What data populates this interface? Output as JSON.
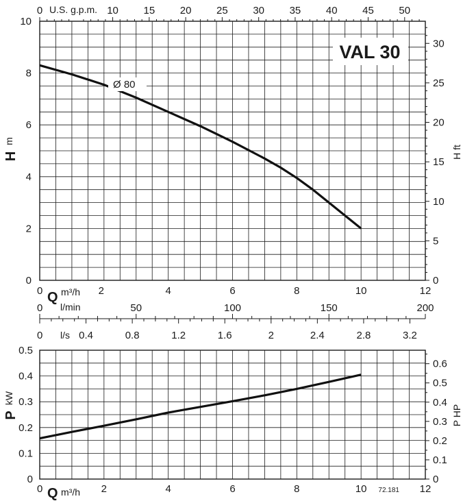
{
  "chart_data": [
    {
      "type": "line",
      "title": "VAL 30",
      "xlabel": "Q",
      "xunit": "m³/h",
      "ylabel": "H",
      "yunit": "m",
      "y2label": "H ft",
      "xlim": [
        0,
        12
      ],
      "ylim": [
        0,
        10
      ],
      "y2lim": [
        0,
        32.8
      ],
      "grid": true,
      "x_ticks": [
        0,
        2,
        4,
        6,
        8,
        10,
        12
      ],
      "y_ticks": [
        0,
        2,
        4,
        6,
        8,
        10
      ],
      "y2_ticks": [
        0,
        5,
        10,
        15,
        20,
        25,
        30
      ],
      "top_axis": {
        "label": "U.S. g.p.m.",
        "ticks": [
          0,
          10,
          15,
          20,
          25,
          30,
          35,
          40,
          45,
          50
        ],
        "per_m3h": 4.403
      },
      "series": [
        {
          "name": "Ø 80",
          "x": [
            0,
            1,
            2,
            3,
            4,
            5,
            6,
            7,
            7.5,
            8,
            8.5,
            9,
            9.5,
            10
          ],
          "y": [
            8.3,
            7.95,
            7.55,
            7.05,
            6.5,
            5.95,
            5.35,
            4.7,
            4.35,
            3.95,
            3.5,
            3.0,
            2.5,
            2.0
          ]
        }
      ]
    },
    {
      "type": "line",
      "xlabel": "Q",
      "xunit": "m³/h",
      "ylabel": "P",
      "yunit": "kW",
      "y2label": "P HP",
      "xlim": [
        0,
        12
      ],
      "ylim": [
        0,
        0.5
      ],
      "y2lim": [
        0,
        0.67
      ],
      "grid": true,
      "x_ticks": [
        0,
        2,
        4,
        6,
        8,
        10,
        12
      ],
      "y_ticks": [
        0,
        0.1,
        0.2,
        0.3,
        0.4,
        0.5
      ],
      "y2_ticks": [
        0,
        0.1,
        0.2,
        0.3,
        0.4,
        0.5,
        0.6
      ],
      "note": "72.181",
      "series": [
        {
          "x": [
            0,
            1,
            2,
            3,
            4,
            5,
            6,
            7,
            8,
            9,
            10
          ],
          "y": [
            0.158,
            0.183,
            0.207,
            0.232,
            0.258,
            0.28,
            0.302,
            0.325,
            0.35,
            0.377,
            0.405
          ]
        }
      ]
    }
  ],
  "scales": {
    "lmin": {
      "label": "l/min",
      "ticks": [
        0,
        50,
        100,
        150,
        200
      ]
    },
    "ls": {
      "label": "l/s",
      "ticks": [
        0,
        0.4,
        0.8,
        1.2,
        1.6,
        2,
        2.4,
        2.8,
        3.2
      ]
    }
  }
}
